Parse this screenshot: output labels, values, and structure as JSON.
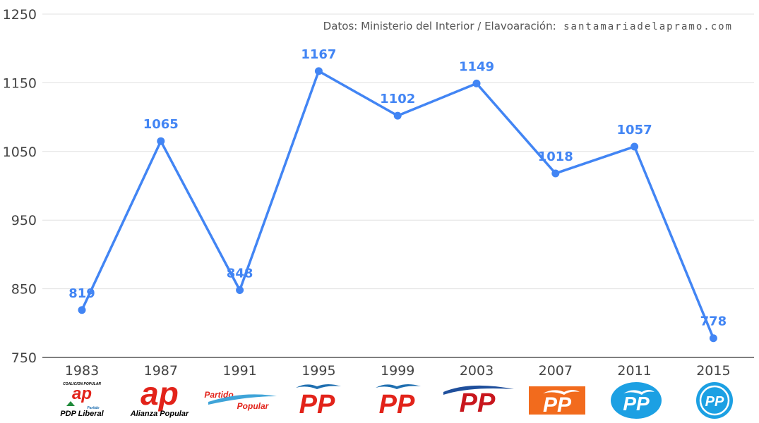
{
  "chart_data": {
    "type": "line",
    "title": "",
    "xlabel": "",
    "ylabel": "",
    "categories": [
      "1983",
      "1987",
      "1991",
      "1995",
      "1999",
      "2003",
      "2007",
      "2011",
      "2015"
    ],
    "series": [
      {
        "values": [
          819,
          1065,
          848,
          1167,
          1102,
          1149,
          1018,
          1057,
          778
        ]
      }
    ],
    "ylim": [
      750,
      1250
    ],
    "yticks": [
      "750",
      "850",
      "950",
      "1050",
      "1150",
      "1250"
    ],
    "grid": true,
    "legend": "none",
    "line_color": "#4285f4"
  },
  "source": {
    "prefix": "Datos: Ministerio del Interior / Elavoaración:",
    "site": "santamariadelapramo.com"
  },
  "logos": [
    {
      "name": "coalicion-ap-pdp-liberal-logo",
      "top": "COALICION POPULAR",
      "main": "ap",
      "bottom": "PDP Liberal",
      "sub": "Partido"
    },
    {
      "name": "alianza-popular-logo",
      "main": "ap",
      "bottom": "Alianza Popular"
    },
    {
      "name": "partido-popular-1991-logo",
      "line1": "Partido",
      "line2": "Popular"
    },
    {
      "name": "pp-1995-logo",
      "main": "PP"
    },
    {
      "name": "pp-1999-logo",
      "main": "PP"
    },
    {
      "name": "pp-2003-logo",
      "main": "PP"
    },
    {
      "name": "pp-2007-logo",
      "main": "PP"
    },
    {
      "name": "pp-2011-logo",
      "main": "PP"
    },
    {
      "name": "pp-2015-logo",
      "main": "PP"
    }
  ]
}
